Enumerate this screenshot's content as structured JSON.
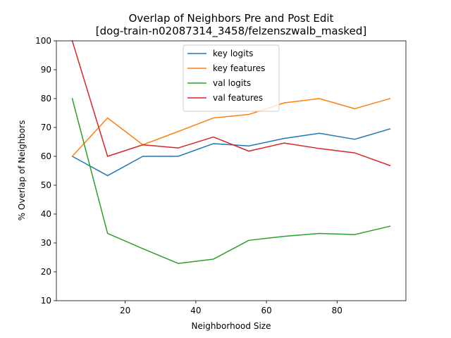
{
  "chart_data": {
    "type": "line",
    "title": "Overlap of Neighbors Pre and Post Edit",
    "subtitle": "[dog-train-n02087314_3458/felzenszwalb_masked]",
    "xlabel": "Neighborhood Size",
    "ylabel": "% Overlap of Neighbors",
    "xlim": [
      0.5,
      99.5
    ],
    "ylim": [
      10,
      100
    ],
    "xticks": [
      20,
      40,
      60,
      80
    ],
    "yticks": [
      10,
      20,
      30,
      40,
      50,
      60,
      70,
      80,
      90,
      100
    ],
    "grid": false,
    "legend_position": "top-center",
    "x": [
      5,
      15,
      25,
      35,
      45,
      55,
      65,
      75,
      85,
      95
    ],
    "series": [
      {
        "name": "key logits",
        "color": "#1f77b4",
        "values": [
          60.0,
          53.3,
          60.0,
          60.0,
          64.4,
          63.6,
          66.2,
          68.0,
          65.9,
          69.5
        ]
      },
      {
        "name": "key features",
        "color": "#ff7f0e",
        "values": [
          60.0,
          73.3,
          64.0,
          68.6,
          73.3,
          74.5,
          78.5,
          80.0,
          76.5,
          80.0
        ]
      },
      {
        "name": "val logits",
        "color": "#2ca02c",
        "values": [
          80.0,
          33.3,
          28.0,
          22.9,
          24.4,
          30.9,
          32.3,
          33.3,
          32.9,
          35.8
        ]
      },
      {
        "name": "val features",
        "color": "#d62728",
        "values": [
          100.0,
          60.0,
          64.0,
          62.9,
          66.7,
          61.8,
          64.6,
          62.7,
          61.2,
          56.8
        ]
      }
    ]
  }
}
